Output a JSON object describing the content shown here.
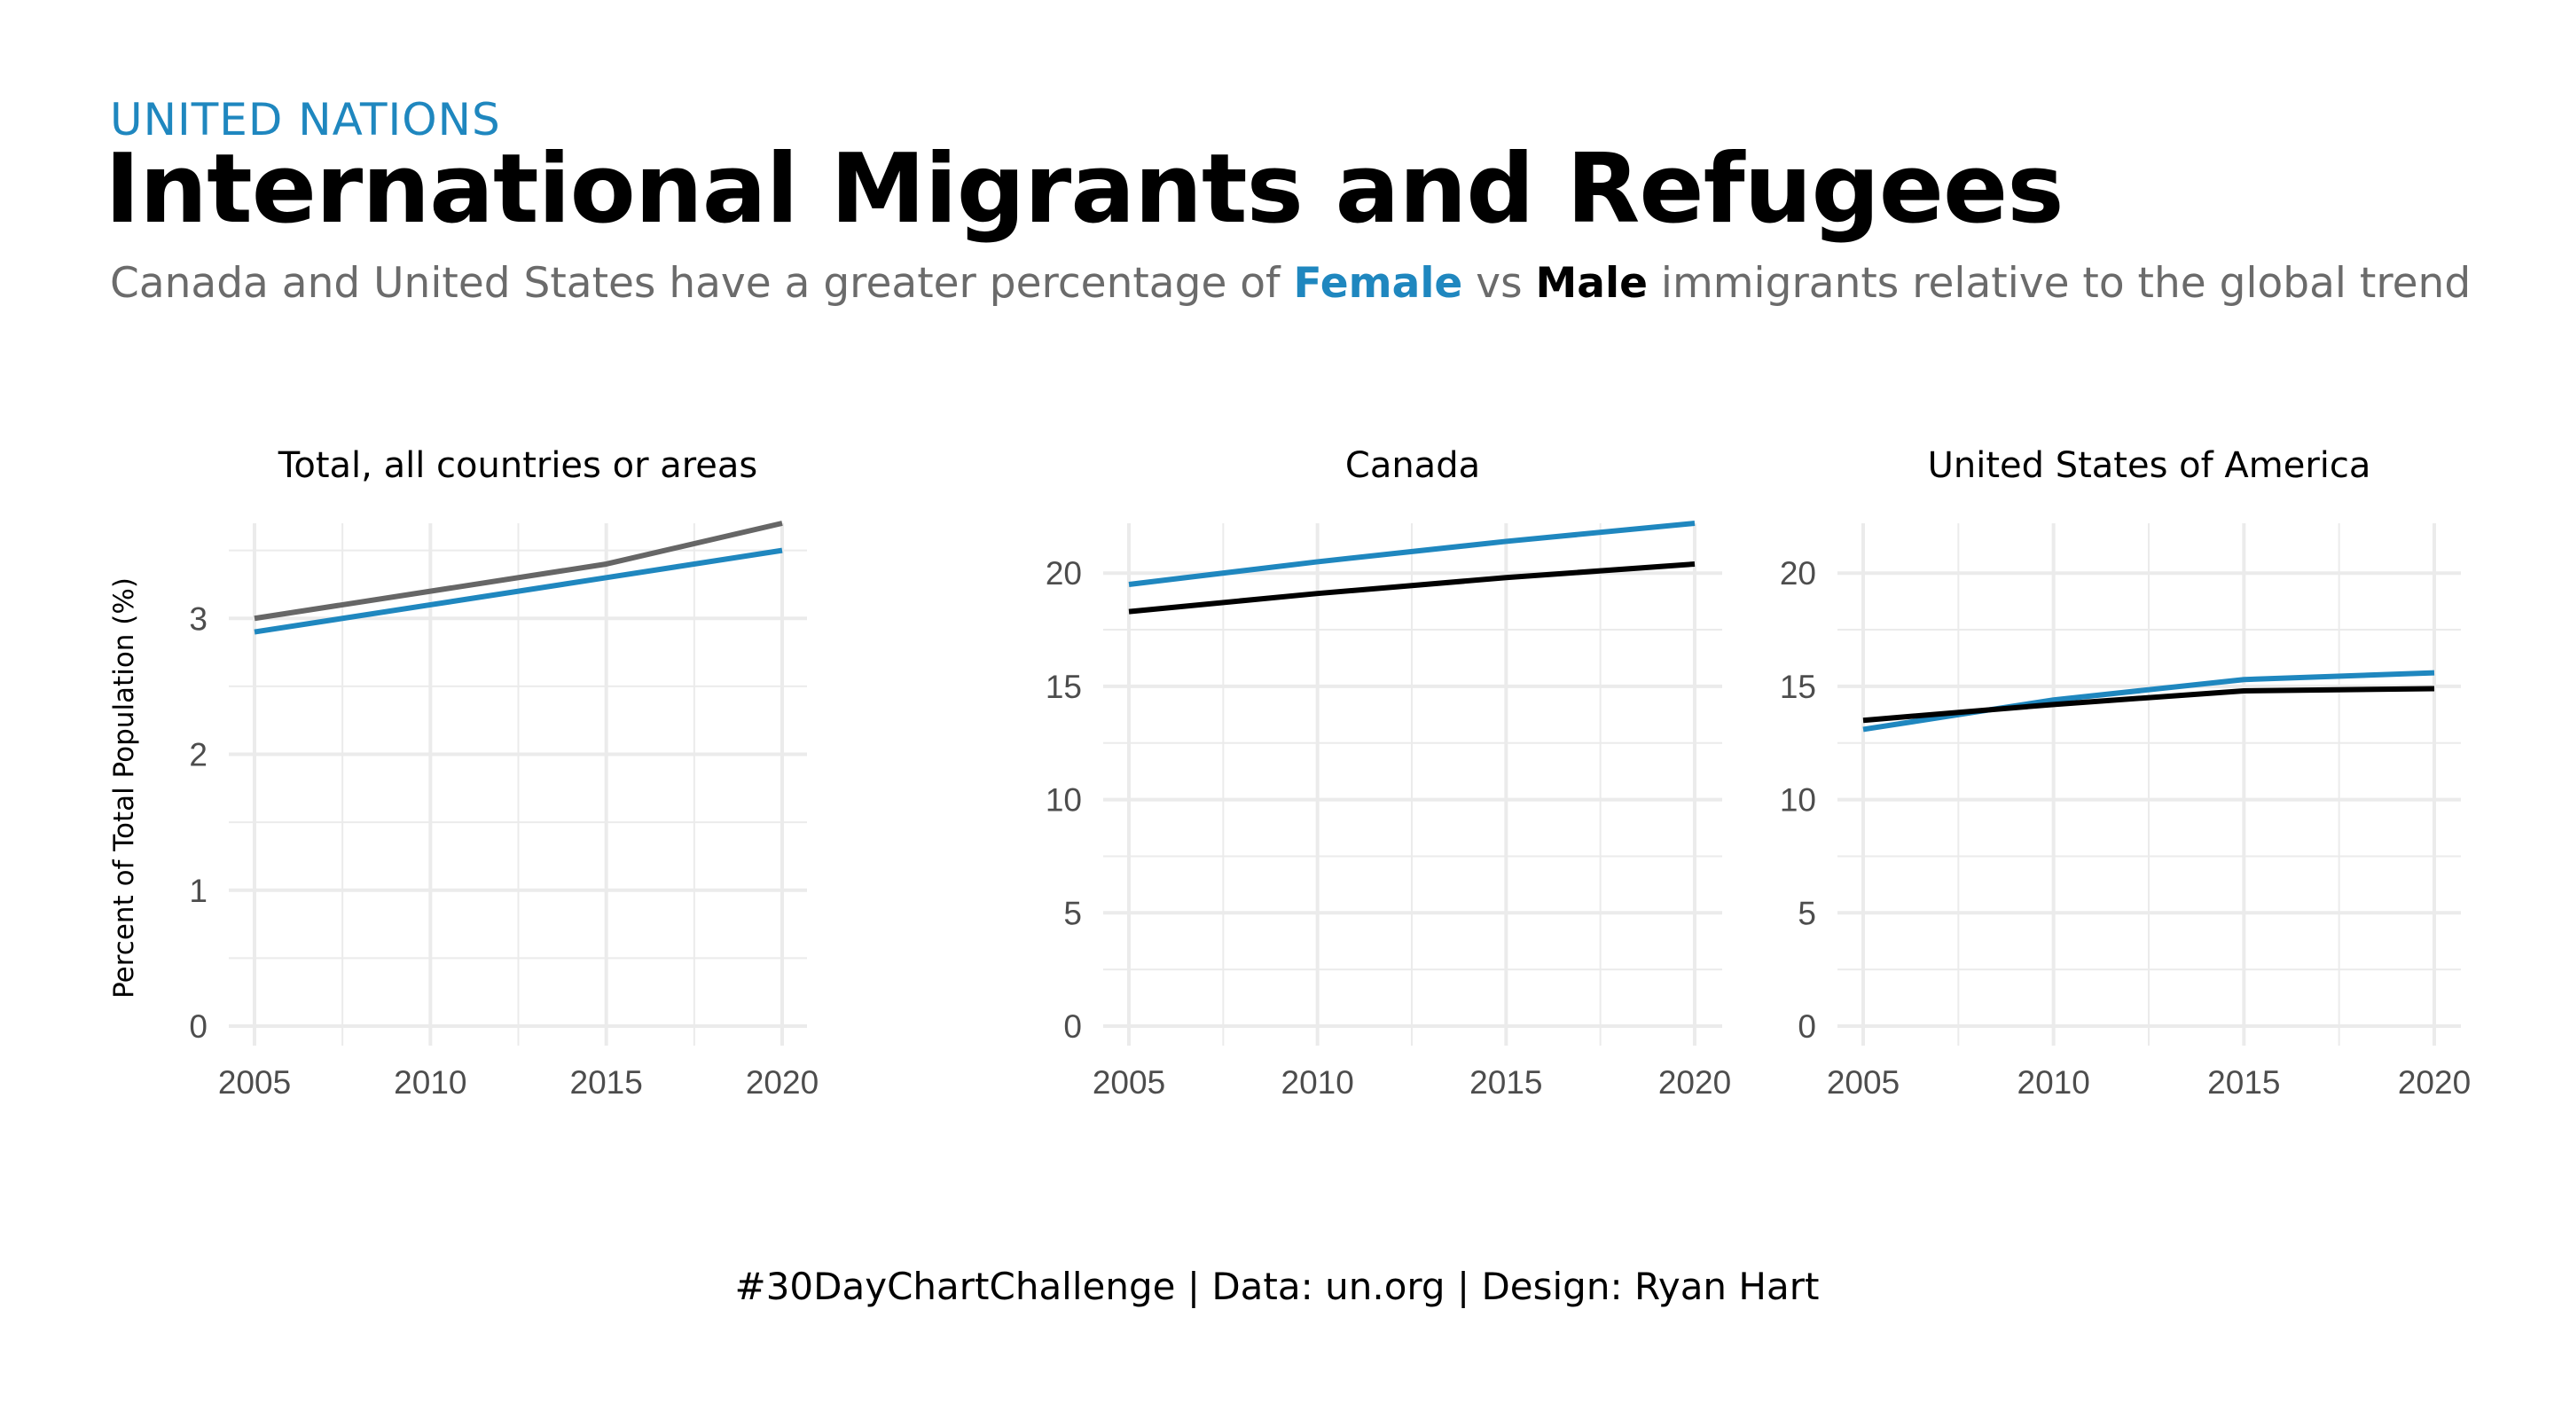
{
  "header": {
    "kicker": "UNITED NATIONS",
    "title": "International Migrants and Refugees",
    "subtitle_prefix": "Canada and United States have a greater percentage of ",
    "subtitle_female": "Female",
    "subtitle_mid": " vs ",
    "subtitle_male": "Male",
    "subtitle_suffix": " immigrants relative to the global trend"
  },
  "caption": "#30DayChartChallenge | Data: un.org | Design: Ryan Hart",
  "colors": {
    "female": "#1f87bf",
    "male": "#000000",
    "male_total": "#666666",
    "grid": "#ebebeb"
  },
  "chart_data": [
    {
      "type": "line",
      "title": "Total, all countries or areas",
      "ylabel": "Percent of Total Population (%)",
      "x": [
        2005,
        2010,
        2015,
        2020
      ],
      "xlim": [
        2005,
        2020
      ],
      "ylim": [
        0,
        3.7
      ],
      "yticks": [
        0,
        1,
        2,
        3
      ],
      "series": [
        {
          "key": "male",
          "values": [
            3.0,
            3.2,
            3.4,
            3.7
          ]
        },
        {
          "key": "female",
          "values": [
            2.9,
            3.1,
            3.3,
            3.5
          ]
        }
      ]
    },
    {
      "type": "line",
      "title": "Canada",
      "ylabel": "",
      "x": [
        2005,
        2010,
        2015,
        2020
      ],
      "xlim": [
        2005,
        2020
      ],
      "ylim": [
        0,
        22.2
      ],
      "yticks": [
        0,
        5,
        10,
        15,
        20
      ],
      "series": [
        {
          "key": "female",
          "values": [
            19.5,
            20.5,
            21.4,
            22.2
          ]
        },
        {
          "key": "male",
          "values": [
            18.3,
            19.1,
            19.8,
            20.4
          ]
        }
      ]
    },
    {
      "type": "line",
      "title": "United States of America",
      "ylabel": "",
      "x": [
        2005,
        2010,
        2015,
        2020
      ],
      "xlim": [
        2005,
        2020
      ],
      "ylim": [
        0,
        22.2
      ],
      "yticks": [
        0,
        5,
        10,
        15,
        20
      ],
      "series": [
        {
          "key": "female",
          "values": [
            13.1,
            14.4,
            15.3,
            15.6
          ]
        },
        {
          "key": "male",
          "values": [
            13.5,
            14.2,
            14.8,
            14.9
          ]
        }
      ]
    }
  ]
}
